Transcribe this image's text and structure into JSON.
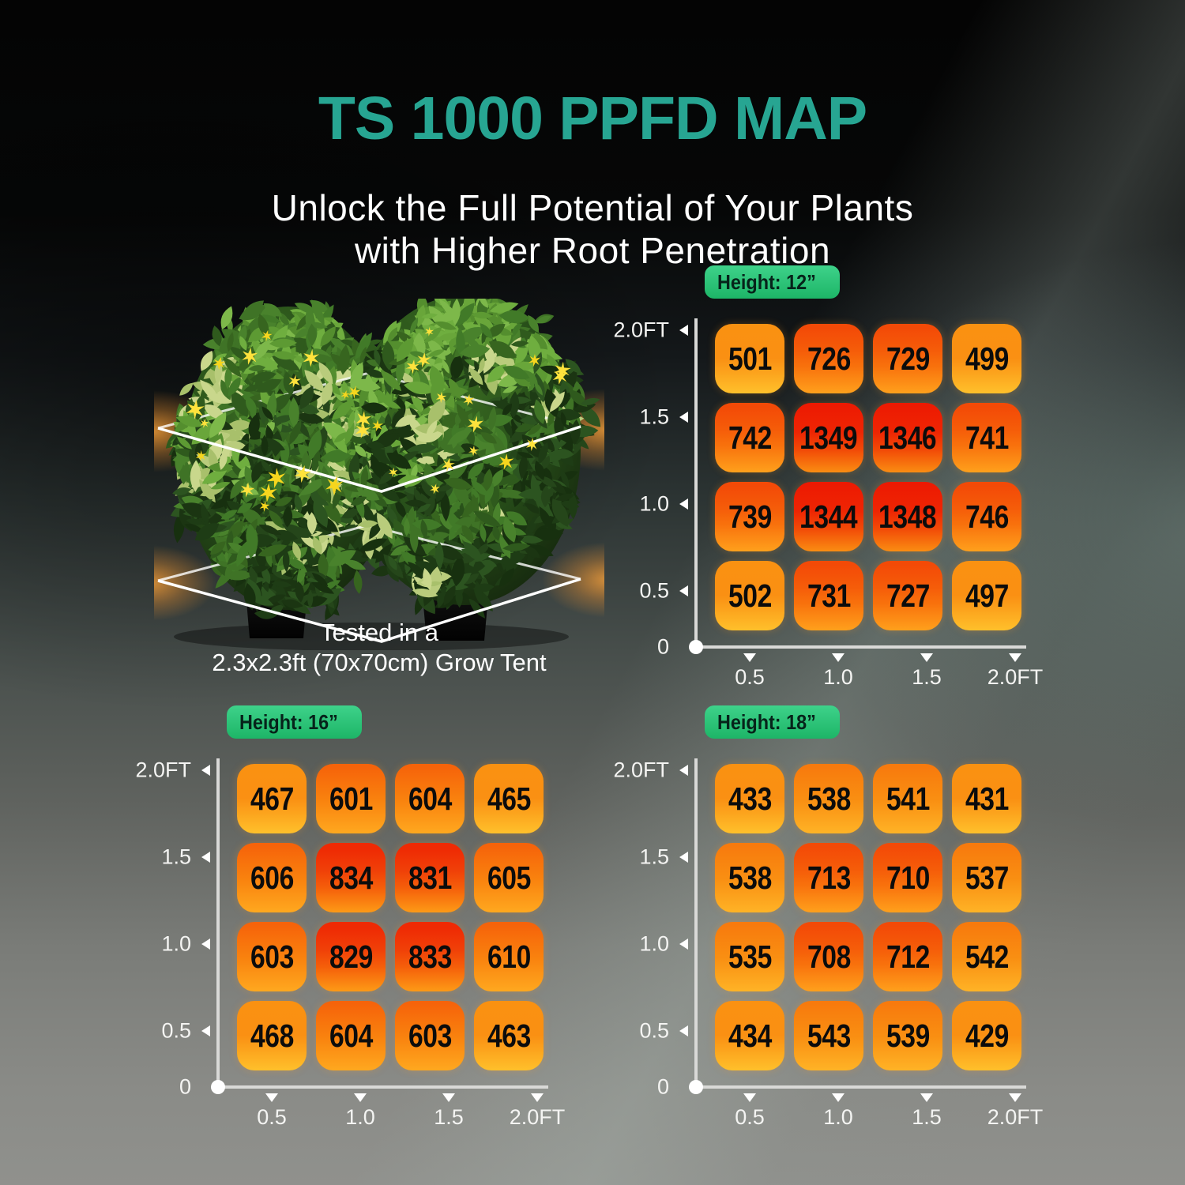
{
  "title": "TS 1000 PPFD MAP",
  "subtitle": [
    "Unlock the Full Potential of Your Plants",
    "with Higher Root Penetration"
  ],
  "plant_caption": [
    "Tested in a",
    "2.3x2.3ft (70x70cm) Grow Tent"
  ],
  "axes": {
    "y_labels": [
      "2.0FT",
      "1.5",
      "1.0",
      "0.5",
      "0"
    ],
    "x_labels": [
      "0.5",
      "1.0",
      "1.5",
      "2.0FT"
    ]
  },
  "colors": {
    "title": "#27a592",
    "badge_top": "#3ed28a",
    "badge_bottom": "#1db567",
    "badge_text": "#06231a",
    "heat_levels": [
      {
        "min": 1300,
        "stops": "#ed1902 0%, #ee2503 42%, #f24b07 68%, #fa8d12 100%"
      },
      {
        "min": 800,
        "stops": "#ef2a04 8%, #f04008 40%, #f55f0a 65%, #fd9a16 100%"
      },
      {
        "min": 700,
        "stops": "#f34a07 6%, #f55c09 38%, #f8700c 60%, #ffa01c 100%"
      },
      {
        "min": 560,
        "stops": "#f6630a 4%, #f9820e 52%, #ffa81f 100%"
      },
      {
        "min": 510,
        "stops": "#f87a0d 4%, #f98f12 52%, #ffb326 100%"
      },
      {
        "min": 0,
        "stops": "#fa9111 6%, #fa9013 50%, #ffc02b 100%"
      }
    ]
  },
  "chart_data": [
    {
      "type": "heatmap",
      "label": "Height: 12”",
      "x_ft": [
        0.5,
        1.0,
        1.5,
        2.0
      ],
      "y_ft": [
        2.0,
        1.5,
        1.0,
        0.5
      ],
      "values": [
        [
          501,
          726,
          729,
          499
        ],
        [
          742,
          1349,
          1346,
          741
        ],
        [
          739,
          1344,
          1348,
          746
        ],
        [
          502,
          731,
          727,
          497
        ]
      ]
    },
    {
      "type": "heatmap",
      "label": "Height: 16”",
      "x_ft": [
        0.5,
        1.0,
        1.5,
        2.0
      ],
      "y_ft": [
        2.0,
        1.5,
        1.0,
        0.5
      ],
      "values": [
        [
          467,
          601,
          604,
          465
        ],
        [
          606,
          834,
          831,
          605
        ],
        [
          603,
          829,
          833,
          610
        ],
        [
          468,
          604,
          603,
          463
        ]
      ]
    },
    {
      "type": "heatmap",
      "label": "Height: 18”",
      "x_ft": [
        0.5,
        1.0,
        1.5,
        2.0
      ],
      "y_ft": [
        2.0,
        1.5,
        1.0,
        0.5
      ],
      "values": [
        [
          433,
          538,
          541,
          431
        ],
        [
          538,
          713,
          710,
          537
        ],
        [
          535,
          708,
          712,
          542
        ],
        [
          434,
          543,
          539,
          429
        ]
      ]
    }
  ]
}
